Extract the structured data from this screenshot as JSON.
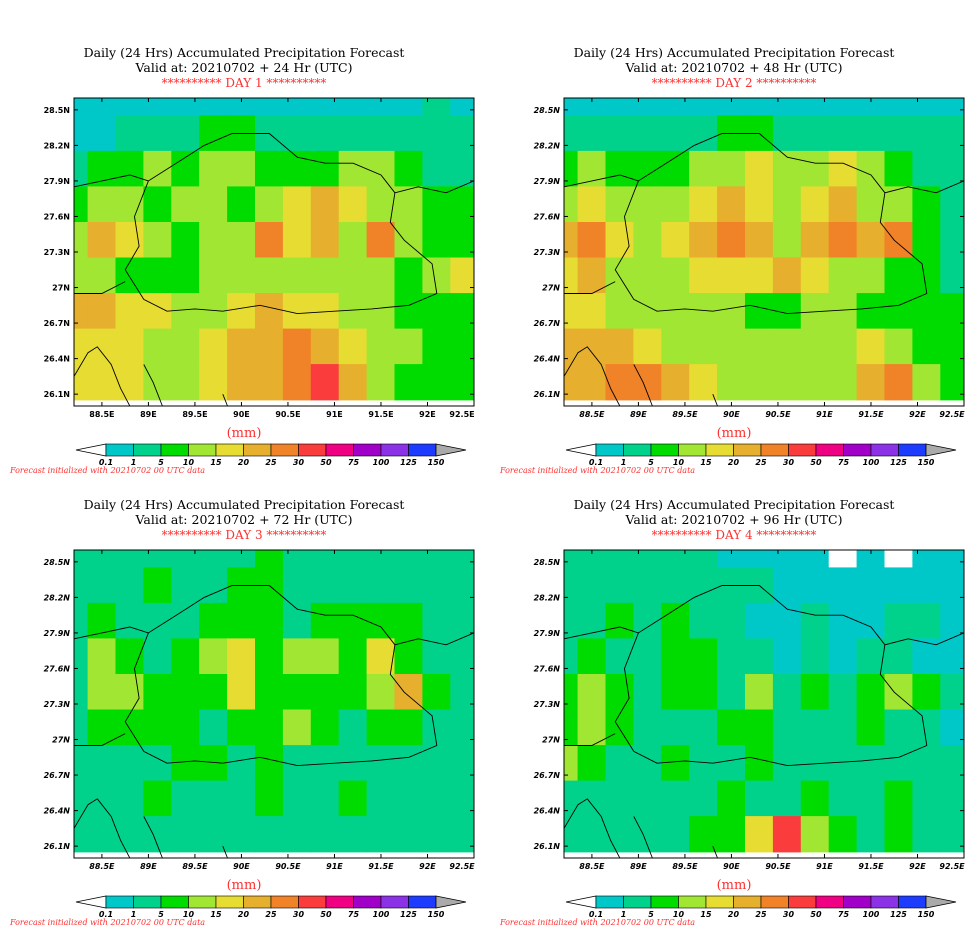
{
  "colors": {
    "text_red": "#ff3030",
    "country": "#000000",
    "no_rain": "#ffffff",
    "levels": [
      "#00c8c8",
      "#00d28c",
      "#00dc00",
      "#a0e632",
      "#e6dc32",
      "#e6af2d",
      "#f08228",
      "#fa3c3c",
      "#f00082",
      "#a000c8",
      "#8c32e6",
      "#1e3cff",
      "#aaaaaa"
    ]
  },
  "colorbar": {
    "labels": [
      "0.1",
      "1",
      "5",
      "10",
      "15",
      "20",
      "25",
      "30",
      "50",
      "75",
      "100",
      "125",
      "150"
    ]
  },
  "unit_label": "(mm)",
  "footnote": "Forecast initialized with 20210702 00 UTC data",
  "y_ticks": [
    "28.5N",
    "28.2N",
    "27.9N",
    "27.6N",
    "27.3N",
    "27N",
    "26.7N",
    "26.4N",
    "26.1N"
  ],
  "x_ticks": [
    "88.5E",
    "89E",
    "89.5E",
    "90E",
    "90.5E",
    "91E",
    "91.5E",
    "92E",
    "92.5E"
  ],
  "panels": [
    {
      "title1": "Daily (24 Hrs) Accumulated Precipitation Forecast",
      "title2": "Valid at: 20210702 + 24 Hr (UTC)",
      "day": "********** DAY 1 **********"
    },
    {
      "title1": "Daily (24 Hrs) Accumulated Precipitation Forecast",
      "title2": "Valid at: 20210702 + 48 Hr (UTC)",
      "day": "********** DAY 2 **********"
    },
    {
      "title1": "Daily (24 Hrs) Accumulated Precipitation Forecast",
      "title2": "Valid at: 20210702 + 72 Hr (UTC)",
      "day": "********** DAY 3 **********"
    },
    {
      "title1": "Daily (24 Hrs) Accumulated Precipitation Forecast",
      "title2": "Valid at: 20210702 + 96 Hr (UTC)",
      "day": "********** DAY 4 **********"
    }
  ],
  "chart_data": {
    "type": "heatmap",
    "grid_lon": [
      88.2,
      88.5,
      88.8,
      89.1,
      89.4,
      89.7,
      90.0,
      90.3,
      90.6,
      90.9,
      91.2,
      91.5,
      91.8,
      92.1,
      92.4
    ],
    "grid_lat": [
      28.6,
      28.3,
      28.0,
      27.7,
      27.4,
      27.1,
      26.8,
      26.5,
      26.2
    ],
    "lon_range": [
      88.2,
      92.5
    ],
    "lat_range": [
      26.0,
      28.6
    ],
    "color_levels_mm": [
      0.1,
      1,
      5,
      10,
      15,
      20,
      25,
      30,
      50,
      75,
      100,
      125,
      150
    ],
    "precip_level_index": [
      [
        [
          1,
          1,
          1,
          1,
          1,
          1,
          1,
          1,
          1,
          1,
          1,
          1,
          1,
          2,
          1
        ],
        [
          1,
          1,
          2,
          2,
          2,
          3,
          3,
          2,
          2,
          2,
          2,
          2,
          2,
          2,
          2
        ],
        [
          2,
          3,
          3,
          4,
          3,
          4,
          4,
          3,
          3,
          3,
          4,
          4,
          3,
          2,
          2
        ],
        [
          3,
          4,
          4,
          3,
          4,
          4,
          3,
          4,
          5,
          6,
          5,
          4,
          4,
          3,
          3
        ],
        [
          4,
          6,
          5,
          4,
          3,
          4,
          4,
          7,
          5,
          6,
          4,
          7,
          4,
          3,
          3
        ],
        [
          4,
          4,
          3,
          3,
          3,
          4,
          4,
          4,
          4,
          4,
          4,
          4,
          3,
          4,
          5
        ],
        [
          6,
          6,
          5,
          5,
          4,
          4,
          5,
          6,
          5,
          5,
          4,
          4,
          3,
          3,
          3
        ],
        [
          5,
          5,
          5,
          4,
          4,
          5,
          6,
          6,
          7,
          6,
          5,
          4,
          4,
          3,
          3
        ],
        [
          5,
          5,
          5,
          4,
          4,
          5,
          6,
          6,
          7,
          8,
          6,
          4,
          3,
          3,
          3
        ]
      ],
      [
        [
          1,
          1,
          1,
          1,
          1,
          1,
          1,
          1,
          1,
          1,
          1,
          1,
          1,
          1,
          1
        ],
        [
          2,
          2,
          2,
          2,
          2,
          2,
          3,
          3,
          2,
          2,
          2,
          2,
          2,
          2,
          2
        ],
        [
          3,
          4,
          3,
          3,
          3,
          4,
          4,
          5,
          4,
          4,
          5,
          4,
          3,
          2,
          2
        ],
        [
          4,
          5,
          4,
          4,
          4,
          5,
          6,
          5,
          4,
          5,
          6,
          4,
          4,
          3,
          2
        ],
        [
          6,
          7,
          5,
          4,
          5,
          6,
          7,
          6,
          4,
          6,
          7,
          6,
          7,
          3,
          2
        ],
        [
          5,
          6,
          4,
          4,
          4,
          5,
          5,
          5,
          6,
          5,
          4,
          4,
          3,
          3,
          2
        ],
        [
          5,
          5,
          4,
          4,
          4,
          4,
          4,
          3,
          3,
          4,
          4,
          3,
          3,
          3,
          3
        ],
        [
          6,
          6,
          6,
          5,
          4,
          4,
          4,
          4,
          4,
          4,
          4,
          5,
          4,
          3,
          3
        ],
        [
          6,
          6,
          7,
          7,
          6,
          5,
          4,
          4,
          4,
          4,
          4,
          6,
          7,
          4,
          3
        ]
      ],
      [
        [
          2,
          2,
          2,
          2,
          2,
          2,
          2,
          3,
          2,
          2,
          2,
          2,
          2,
          2,
          2
        ],
        [
          2,
          2,
          2,
          3,
          2,
          2,
          3,
          3,
          2,
          2,
          2,
          2,
          2,
          2,
          2
        ],
        [
          2,
          3,
          2,
          2,
          2,
          3,
          3,
          3,
          2,
          3,
          3,
          3,
          3,
          2,
          2
        ],
        [
          2,
          4,
          3,
          2,
          3,
          4,
          5,
          3,
          4,
          4,
          3,
          5,
          3,
          2,
          2
        ],
        [
          2,
          4,
          4,
          3,
          3,
          3,
          5,
          3,
          3,
          3,
          3,
          4,
          6,
          3,
          2
        ],
        [
          2,
          3,
          3,
          3,
          3,
          2,
          3,
          3,
          4,
          3,
          2,
          3,
          3,
          2,
          2
        ],
        [
          2,
          2,
          2,
          2,
          3,
          3,
          2,
          3,
          2,
          2,
          2,
          2,
          2,
          2,
          2
        ],
        [
          2,
          2,
          2,
          3,
          2,
          2,
          2,
          3,
          2,
          2,
          3,
          2,
          2,
          2,
          2
        ],
        [
          2,
          2,
          2,
          2,
          2,
          2,
          2,
          2,
          2,
          2,
          2,
          2,
          2,
          2,
          2
        ]
      ],
      [
        [
          2,
          2,
          2,
          2,
          2,
          2,
          1,
          1,
          1,
          1,
          0,
          1,
          0,
          1,
          1
        ],
        [
          2,
          2,
          2,
          2,
          2,
          2,
          2,
          2,
          1,
          1,
          1,
          1,
          1,
          1,
          1
        ],
        [
          2,
          2,
          3,
          2,
          3,
          2,
          2,
          1,
          1,
          2,
          1,
          1,
          2,
          2,
          1
        ],
        [
          2,
          3,
          2,
          2,
          3,
          3,
          2,
          2,
          1,
          2,
          1,
          2,
          2,
          1,
          1
        ],
        [
          3,
          4,
          3,
          2,
          3,
          3,
          2,
          4,
          2,
          3,
          2,
          3,
          4,
          3,
          2
        ],
        [
          3,
          4,
          3,
          2,
          2,
          2,
          3,
          3,
          2,
          2,
          2,
          3,
          2,
          2,
          1
        ],
        [
          4,
          3,
          2,
          2,
          3,
          2,
          2,
          3,
          2,
          2,
          2,
          2,
          2,
          2,
          2
        ],
        [
          2,
          2,
          2,
          2,
          2,
          2,
          3,
          2,
          2,
          3,
          2,
          2,
          3,
          2,
          2
        ],
        [
          2,
          2,
          2,
          2,
          2,
          3,
          3,
          5,
          8,
          4,
          3,
          2,
          3,
          2,
          2
        ]
      ]
    ]
  }
}
